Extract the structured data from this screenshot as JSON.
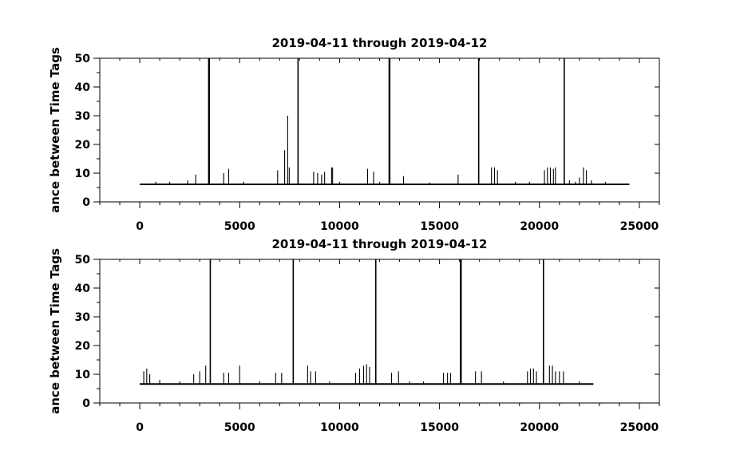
{
  "chart_data": [
    {
      "type": "line",
      "title": "2019-04-11 through 2019-04-12",
      "xlabel": "",
      "ylabel": "ance between Time Tags",
      "xlim": [
        -2000,
        26000
      ],
      "ylim": [
        0,
        50
      ],
      "xticks": [
        0,
        5000,
        10000,
        15000,
        20000,
        25000
      ],
      "xtick_labels": [
        "0",
        "5000",
        "10000",
        "15000",
        "20000",
        "25000"
      ],
      "yticks": [
        0,
        10,
        20,
        30,
        40,
        50
      ],
      "ytick_labels": [
        "0",
        "10",
        "20",
        "30",
        "40",
        "50"
      ],
      "grid": false,
      "color": "#000000",
      "baseline": {
        "x_start": 0,
        "x_end": 24500,
        "y": 6.1
      },
      "series": [
        {
          "x": [
            3450,
            3480,
            7920,
            12480,
            12510,
            16960,
            21240,
            7400,
            7250,
            6900,
            7480,
            2800,
            4200,
            4450,
            8700,
            8900,
            9100,
            9250,
            9600,
            9650,
            11400,
            11700,
            13200,
            15930,
            17600,
            17750,
            17900,
            20250,
            20400,
            20550,
            20700,
            20800,
            22000,
            22200,
            22350,
            800,
            1500,
            2400,
            5200,
            10000,
            12000,
            14500,
            18800,
            19500,
            21500,
            21800,
            22600,
            23300
          ],
          "y": [
            50,
            50,
            50,
            50,
            50,
            50,
            50,
            30,
            18,
            11,
            12,
            9.5,
            10,
            11.5,
            10.5,
            10,
            9.5,
            10.5,
            12,
            12,
            11.5,
            10.5,
            9,
            9.5,
            12,
            12,
            11,
            11,
            12,
            12,
            11.5,
            12,
            8.5,
            12,
            11,
            7,
            7,
            7.5,
            7,
            7,
            7,
            6.8,
            7,
            7,
            7.5,
            7,
            7.5,
            7
          ]
        }
      ]
    },
    {
      "type": "line",
      "title": "2019-04-11 through 2019-04-12",
      "xlabel": "",
      "ylabel": "ance between Time Tags",
      "xlim": [
        -2000,
        26000
      ],
      "ylim": [
        0,
        50
      ],
      "xticks": [
        0,
        5000,
        10000,
        15000,
        20000,
        25000
      ],
      "xtick_labels": [
        "0",
        "5000",
        "10000",
        "15000",
        "20000",
        "25000"
      ],
      "yticks": [
        0,
        10,
        20,
        30,
        40,
        50
      ],
      "ytick_labels": [
        "0",
        "10",
        "20",
        "30",
        "40",
        "50"
      ],
      "grid": false,
      "color": "#000000",
      "baseline": {
        "x_start": 0,
        "x_end": 22700,
        "y": 6.6
      },
      "series": [
        {
          "x": [
            3530,
            7680,
            11810,
            16050,
            16080,
            20200,
            200,
            350,
            500,
            2700,
            3000,
            3300,
            4200,
            4450,
            5000,
            6800,
            7100,
            8400,
            8550,
            8800,
            10800,
            11000,
            11200,
            11350,
            11500,
            12600,
            12950,
            15200,
            15400,
            15550,
            16800,
            17100,
            19400,
            19550,
            19700,
            19850,
            20500,
            20650,
            20800,
            21000,
            21200,
            1000,
            2000,
            6000,
            9500,
            13500,
            14200,
            18200,
            22000
          ],
          "y": [
            50,
            50,
            50,
            50,
            50,
            50,
            11,
            12,
            10,
            10,
            11,
            13,
            10.5,
            10.5,
            13,
            10.5,
            10.5,
            13,
            11,
            11,
            10.5,
            12,
            13,
            13.5,
            12.5,
            10.5,
            11,
            10.5,
            10.5,
            10.5,
            11,
            11,
            11,
            12,
            12,
            11,
            13,
            13,
            11,
            11,
            11,
            8,
            7.5,
            7.5,
            7.5,
            7.5,
            7.5,
            7.5,
            7.5
          ]
        }
      ]
    }
  ]
}
